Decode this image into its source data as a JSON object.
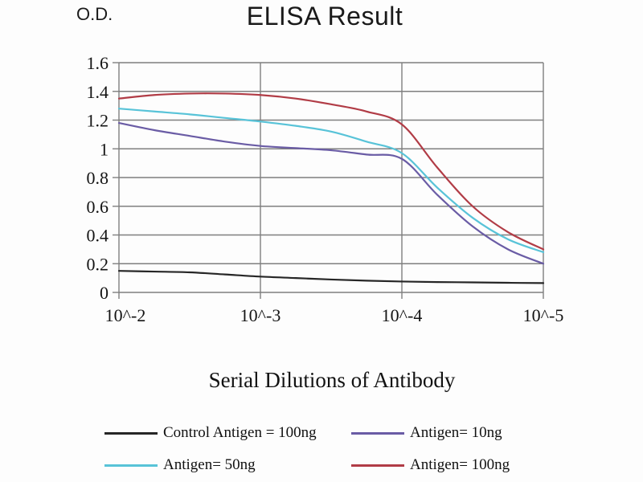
{
  "chart_data": {
    "type": "line",
    "title": "ELISA Result",
    "ylabel": "O.D.",
    "xlabel": "Serial Dilutions of Antibody",
    "ylim": [
      0,
      1.6
    ],
    "y_tick_step": 0.2,
    "y_ticks": [
      0,
      0.2,
      0.4,
      0.6,
      0.8,
      1,
      1.2,
      1.4,
      1.6
    ],
    "y_tick_labels": [
      "0",
      "0.2",
      "0.4",
      "0.6",
      "0.8",
      "1",
      "1.2",
      "1.4",
      "1.6"
    ],
    "x_tick_labels": [
      "10^-2",
      "10^-3",
      "10^-4",
      "10^-5"
    ],
    "x_exponents": [
      -2,
      -2.25,
      -2.5,
      -2.75,
      -3,
      -3.25,
      -3.5,
      -3.75,
      -4,
      -4.25,
      -4.5,
      -4.75,
      -5
    ],
    "grid": true,
    "legend_position": "bottom",
    "series": [
      {
        "id": "control-antigen-100ng",
        "name": "Control Antigen = 100ng",
        "color": "#262626",
        "values": [
          0.15,
          0.145,
          0.14,
          0.125,
          0.11,
          0.1,
          0.09,
          0.082,
          0.076,
          0.072,
          0.07,
          0.067,
          0.065
        ]
      },
      {
        "id": "antigen-10ng",
        "name": "Antigen= 10ng",
        "color": "#6a5ca5",
        "values": [
          1.18,
          1.13,
          1.09,
          1.05,
          1.02,
          1.005,
          0.99,
          0.96,
          0.93,
          0.68,
          0.46,
          0.3,
          0.2
        ]
      },
      {
        "id": "antigen-50ng",
        "name": "Antigen= 50ng",
        "color": "#58c3d8",
        "values": [
          1.28,
          1.26,
          1.24,
          1.215,
          1.19,
          1.16,
          1.12,
          1.05,
          0.97,
          0.73,
          0.52,
          0.37,
          0.28
        ]
      },
      {
        "id": "antigen-100ng",
        "name": "Antigen= 100ng",
        "color": "#b13c46",
        "values": [
          1.35,
          1.375,
          1.385,
          1.385,
          1.375,
          1.35,
          1.31,
          1.26,
          1.17,
          0.87,
          0.6,
          0.42,
          0.3
        ]
      }
    ]
  },
  "colors": {
    "gridline": "#7f7f7f",
    "text": "#141414",
    "background": "#fdfdfd"
  }
}
